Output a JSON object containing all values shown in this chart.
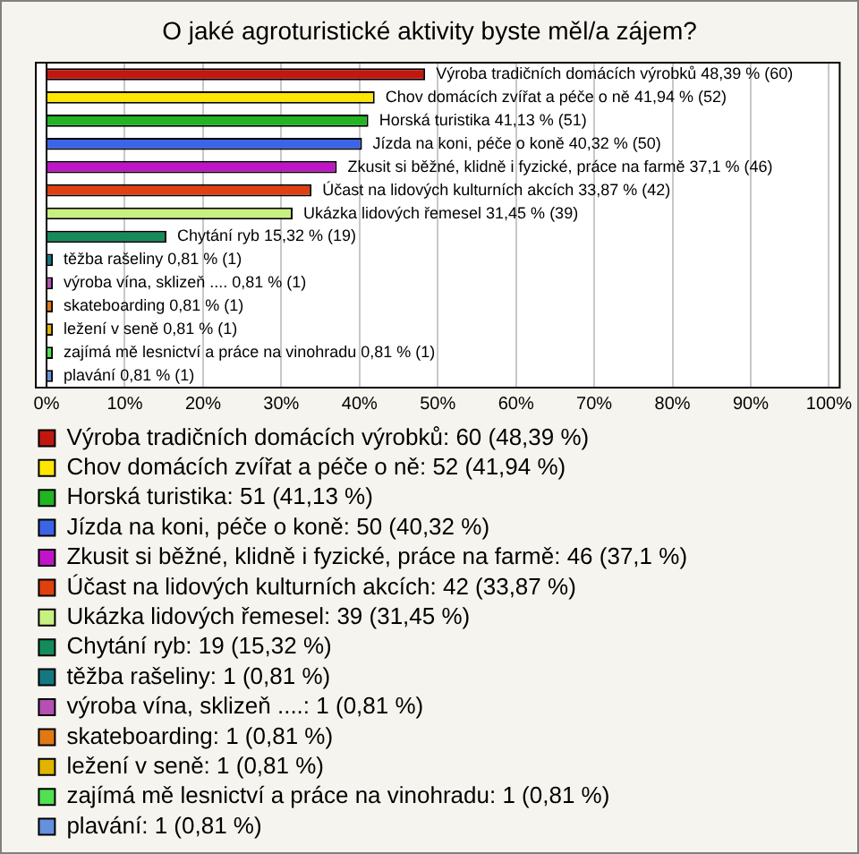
{
  "chart_data": {
    "type": "bar",
    "orientation": "horizontal",
    "title": "O jaké agroturistické aktivity byste měl/a zájem?",
    "categories": [
      null,
      null,
      null,
      null,
      null,
      null,
      null,
      null,
      null,
      null,
      null,
      null,
      null,
      null
    ],
    "series": [
      {
        "name": "Výroba tradičních domácích výrobků: 60 (48,39 %)",
        "color": "#c01810",
        "values": [
          48.39,
          null,
          null,
          null,
          null,
          null,
          null,
          null,
          null,
          null,
          null,
          null,
          null,
          null
        ],
        "value_labels": [
          "Výroba tradičních domácích výrobků 48,39 % (60)",
          null,
          null,
          null,
          null,
          null,
          null,
          null,
          null,
          null,
          null,
          null,
          null,
          null
        ]
      },
      {
        "name": "Chov domácích zvířat a péče o ně: 52 (41,94 %)",
        "color": "#ffe600",
        "values": [
          null,
          41.94,
          null,
          null,
          null,
          null,
          null,
          null,
          null,
          null,
          null,
          null,
          null,
          null
        ],
        "value_labels": [
          null,
          "Chov domácích zvířat a péče o ně 41,94 % (52)",
          null,
          null,
          null,
          null,
          null,
          null,
          null,
          null,
          null,
          null,
          null,
          null
        ]
      },
      {
        "name": "Horská turistika: 51 (41,13 %)",
        "color": "#22b422",
        "values": [
          null,
          null,
          41.13,
          null,
          null,
          null,
          null,
          null,
          null,
          null,
          null,
          null,
          null,
          null
        ],
        "value_labels": [
          null,
          null,
          "Horská turistika 41,13 % (51)",
          null,
          null,
          null,
          null,
          null,
          null,
          null,
          null,
          null,
          null,
          null
        ]
      },
      {
        "name": "Jízda na koni, péče o koně: 50 (40,32 %)",
        "color": "#3c64e6",
        "values": [
          null,
          null,
          null,
          40.32,
          null,
          null,
          null,
          null,
          null,
          null,
          null,
          null,
          null,
          null
        ],
        "value_labels": [
          null,
          null,
          null,
          "Jízda na koni, péče o koně 40,32 % (50)",
          null,
          null,
          null,
          null,
          null,
          null,
          null,
          null,
          null,
          null
        ]
      },
      {
        "name": "Zkusit si běžné, klidně i fyzické, práce na farmě: 46 (37,1 %)",
        "color": "#c014c8",
        "values": [
          null,
          null,
          null,
          null,
          37.1,
          null,
          null,
          null,
          null,
          null,
          null,
          null,
          null,
          null
        ],
        "value_labels": [
          null,
          null,
          null,
          null,
          "Zkusit si běžné, klidně i fyzické, práce na farmě 37,1 % (46)",
          null,
          null,
          null,
          null,
          null,
          null,
          null,
          null,
          null
        ]
      },
      {
        "name": "Účast na lidových kulturních akcích: 42 (33,87 %)",
        "color": "#e04010",
        "values": [
          null,
          null,
          null,
          null,
          null,
          33.87,
          null,
          null,
          null,
          null,
          null,
          null,
          null,
          null
        ],
        "value_labels": [
          null,
          null,
          null,
          null,
          null,
          "Účast na lidových kulturních akcích 33,87 % (42)",
          null,
          null,
          null,
          null,
          null,
          null,
          null,
          null
        ]
      },
      {
        "name": "Ukázka lidových řemesel: 39 (31,45 %)",
        "color": "#c8f080",
        "values": [
          null,
          null,
          null,
          null,
          null,
          null,
          31.45,
          null,
          null,
          null,
          null,
          null,
          null,
          null
        ],
        "value_labels": [
          null,
          null,
          null,
          null,
          null,
          null,
          "Ukázka lidových řemesel 31,45 % (39)",
          null,
          null,
          null,
          null,
          null,
          null,
          null
        ]
      },
      {
        "name": "Chytání ryb: 19 (15,32 %)",
        "color": "#148c5a",
        "values": [
          null,
          null,
          null,
          null,
          null,
          null,
          null,
          15.32,
          null,
          null,
          null,
          null,
          null,
          null
        ],
        "value_labels": [
          null,
          null,
          null,
          null,
          null,
          null,
          null,
          "Chytání ryb 15,32 % (19)",
          null,
          null,
          null,
          null,
          null,
          null
        ]
      },
      {
        "name": "těžba rašeliny: 1 (0,81 %)",
        "color": "#147882",
        "values": [
          null,
          null,
          null,
          null,
          null,
          null,
          null,
          null,
          0.81,
          null,
          null,
          null,
          null,
          null
        ],
        "value_labels": [
          null,
          null,
          null,
          null,
          null,
          null,
          null,
          null,
          "těžba rašeliny 0,81 % (1)",
          null,
          null,
          null,
          null,
          null
        ]
      },
      {
        "name": "výroba vína, sklizeň ....: 1 (0,81 %)",
        "color": "#b450b4",
        "values": [
          null,
          null,
          null,
          null,
          null,
          null,
          null,
          null,
          null,
          0.81,
          null,
          null,
          null,
          null
        ],
        "value_labels": [
          null,
          null,
          null,
          null,
          null,
          null,
          null,
          null,
          null,
          "výroba vína, sklizeň .... 0,81 % (1)",
          null,
          null,
          null,
          null
        ]
      },
      {
        "name": "skateboarding: 1 (0,81 %)",
        "color": "#e07814",
        "values": [
          null,
          null,
          null,
          null,
          null,
          null,
          null,
          null,
          null,
          null,
          0.81,
          null,
          null,
          null
        ],
        "value_labels": [
          null,
          null,
          null,
          null,
          null,
          null,
          null,
          null,
          null,
          null,
          "skateboarding 0,81 % (1)",
          null,
          null,
          null
        ]
      },
      {
        "name": "ležení v seně: 1 (0,81 %)",
        "color": "#e0b400",
        "values": [
          null,
          null,
          null,
          null,
          null,
          null,
          null,
          null,
          null,
          null,
          null,
          0.81,
          null,
          null
        ],
        "value_labels": [
          null,
          null,
          null,
          null,
          null,
          null,
          null,
          null,
          null,
          null,
          null,
          "ležení v seně 0,81 % (1)",
          null,
          null
        ]
      },
      {
        "name": "zajímá mě lesnictví a práce na vinohradu: 1 (0,81 %)",
        "color": "#50e050",
        "values": [
          null,
          null,
          null,
          null,
          null,
          null,
          null,
          null,
          null,
          null,
          null,
          null,
          0.81,
          null
        ],
        "value_labels": [
          null,
          null,
          null,
          null,
          null,
          null,
          null,
          null,
          null,
          null,
          null,
          null,
          "zajímá mě lesnictví a práce na vinohradu 0,81 % (1)",
          null
        ]
      },
      {
        "name": "plavání: 1 (0,81 %)",
        "color": "#6490dc",
        "values": [
          null,
          null,
          null,
          null,
          null,
          null,
          null,
          null,
          null,
          null,
          null,
          null,
          null,
          0.81
        ],
        "value_labels": [
          null,
          null,
          null,
          null,
          null,
          null,
          null,
          null,
          null,
          null,
          null,
          null,
          null,
          "plavání 0,81 % (1)"
        ]
      }
    ],
    "xlim": [
      0,
      100
    ],
    "xticks": [
      {
        "value": 0,
        "label": "0%"
      },
      {
        "value": 10,
        "label": "10%"
      },
      {
        "value": 20,
        "label": "20%"
      },
      {
        "value": 30,
        "label": "30%"
      },
      {
        "value": 40,
        "label": "40%"
      },
      {
        "value": 50,
        "label": "50%"
      },
      {
        "value": 60,
        "label": "60%"
      },
      {
        "value": 70,
        "label": "70%"
      },
      {
        "value": 80,
        "label": "80%"
      },
      {
        "value": 90,
        "label": "90%"
      },
      {
        "value": 100,
        "label": "100%"
      }
    ],
    "grid": "x",
    "tick_labels": "x",
    "legend": "bottom"
  }
}
